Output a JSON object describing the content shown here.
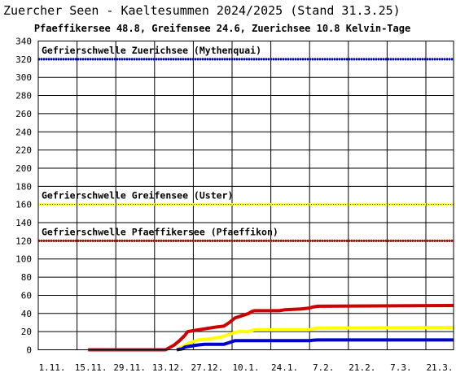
{
  "chart_data": {
    "type": "line",
    "title": "Zuercher Seen - Kaeltesummen 2024/2025  (Stand 31.3.25)",
    "subtitle": "Pfaeffikersee 48.8, Greifensee 24.6, Zuerichsee 10.8 Kelvin-Tage",
    "xlabel": "",
    "ylabel": "",
    "x_ticks": [
      "1.11.",
      "15.11.",
      "29.11.",
      "13.12.",
      "27.12.",
      "10.1.",
      "24.1.",
      "7.2.",
      "21.2.",
      "7.3.",
      "21.3."
    ],
    "x_range_days": [
      0,
      150
    ],
    "ylim": [
      0,
      340
    ],
    "y_ticks": [
      0,
      20,
      40,
      60,
      80,
      100,
      120,
      140,
      160,
      180,
      200,
      220,
      240,
      260,
      280,
      300,
      320,
      340
    ],
    "grid": true,
    "thresholds": [
      {
        "label": "Gefrierschwelle Zuerichsee (Mythenquai)",
        "value": 320,
        "color": "#0000cc"
      },
      {
        "label": "Gefrierschwelle Greifensee (Uster)",
        "value": 160,
        "color": "#ffff00"
      },
      {
        "label": "Gefrierschwelle Pfaeffikersee (Pfaeffikon)",
        "value": 120,
        "color": "#cc0000"
      }
    ],
    "series": [
      {
        "name": "Pfaeffikersee",
        "color": "#cc0000",
        "x": [
          18,
          46,
          49,
          51,
          53,
          54,
          58,
          62,
          64,
          67,
          69,
          71,
          72,
          76,
          77,
          78,
          87,
          89,
          95,
          98,
          99,
          101,
          150
        ],
        "y": [
          0,
          0,
          5,
          10,
          16,
          20,
          22,
          24,
          25,
          26,
          30,
          35,
          36,
          40,
          42,
          43,
          43,
          44,
          45,
          46,
          47,
          48,
          48.8
        ]
      },
      {
        "name": "Greifensee",
        "color": "#ffff00",
        "x": [
          50,
          51,
          53,
          55,
          57,
          58,
          62,
          64,
          66,
          68,
          70,
          71,
          72,
          76,
          77,
          78,
          98,
          99,
          101,
          150
        ],
        "y": [
          0,
          2,
          5,
          8,
          10,
          11,
          12,
          13,
          14,
          16,
          18,
          19,
          20,
          20,
          21,
          22,
          22,
          23,
          24,
          24.6
        ]
      },
      {
        "name": "Zuerichsee",
        "color": "#0000cc",
        "x": [
          50,
          52,
          53,
          55,
          57,
          60,
          67,
          69,
          71,
          98,
          99,
          101,
          150
        ],
        "y": [
          0,
          1,
          3,
          4,
          5,
          6,
          6,
          8,
          10,
          10,
          10.5,
          10.8,
          10.8
        ]
      }
    ]
  }
}
